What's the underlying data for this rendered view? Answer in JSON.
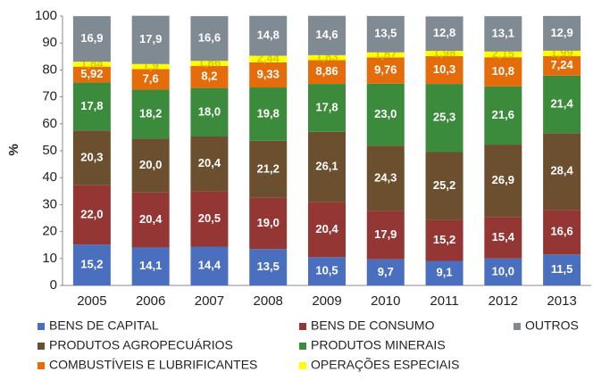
{
  "chart_data": {
    "type": "stacked-bar",
    "y_label": "%",
    "categories": [
      "2005",
      "2006",
      "2007",
      "2008",
      "2009",
      "2010",
      "2011",
      "2012",
      "2013"
    ],
    "ylim": [
      0,
      100
    ],
    "yticks": [
      0,
      10,
      20,
      30,
      40,
      50,
      60,
      70,
      80,
      90,
      100
    ],
    "series": [
      {
        "name": "BENS DE CAPITAL",
        "color": "#4a6fbf",
        "values": [
          15.2,
          14.1,
          14.4,
          13.5,
          10.5,
          9.7,
          9.1,
          10.0,
          11.5
        ],
        "value_labels": [
          "15,2",
          "14,1",
          "14,4",
          "13,5",
          "10,5",
          "9,7",
          "9,1",
          "10,0",
          "11,5"
        ]
      },
      {
        "name": "BENS DE CONSUMO",
        "color": "#943634",
        "values": [
          22.0,
          20.4,
          20.5,
          19.0,
          20.4,
          17.9,
          15.2,
          15.4,
          16.6
        ],
        "value_labels": [
          "22,0",
          "20,4",
          "20,5",
          "19,0",
          "20,4",
          "17,9",
          "15,2",
          "15,4",
          "16,6"
        ]
      },
      {
        "name": "PRODUTOS AGROPECUÁRIOS",
        "color": "#6b4f2e",
        "values": [
          20.3,
          20.0,
          20.4,
          21.2,
          26.1,
          24.3,
          25.2,
          26.9,
          28.4
        ],
        "value_labels": [
          "20,3",
          "20,0",
          "20,4",
          "21,2",
          "26,1",
          "24,3",
          "25,2",
          "26,9",
          "28,4"
        ]
      },
      {
        "name": "PRODUTOS MINERAIS",
        "color": "#3c8a3c",
        "values": [
          17.8,
          18.2,
          18.0,
          19.8,
          17.8,
          23.0,
          25.3,
          21.6,
          21.4
        ],
        "value_labels": [
          "17,8",
          "18,2",
          "18,0",
          "19,8",
          "17,8",
          "23,0",
          "25,3",
          "21,6",
          "21,4"
        ]
      },
      {
        "name": "COMBUSTÍVEIS E LUBRIFICANTES",
        "color": "#e46c0a",
        "values": [
          5.92,
          7.6,
          8.2,
          9.33,
          8.86,
          9.76,
          10.3,
          10.8,
          7.24
        ],
        "value_labels": [
          "5,92",
          "7,6",
          "8,2",
          "9,33",
          "8,86",
          "9,76",
          "10,3",
          "10,8",
          "7,24"
        ]
      },
      {
        "name": "OPERAÇÕES ESPECIAIS",
        "color": "#ffff00",
        "values": [
          1.84,
          1.9,
          1.86,
          2.44,
          1.83,
          1.87,
          1.98,
          2.15,
          1.99
        ],
        "value_labels": [
          "1,84",
          "1,9",
          "1,86",
          "2,44",
          "1,83",
          "1,87",
          "1,98",
          "2,15",
          "1,99"
        ]
      },
      {
        "name": "OUTROS",
        "color": "#7f8a93",
        "values": [
          16.9,
          17.9,
          16.6,
          14.8,
          14.6,
          13.5,
          12.8,
          13.1,
          12.9
        ],
        "value_labels": [
          "16,9",
          "17,9",
          "16,6",
          "14,8",
          "14,6",
          "13,5",
          "12,8",
          "13,1",
          "12,9"
        ]
      }
    ]
  }
}
